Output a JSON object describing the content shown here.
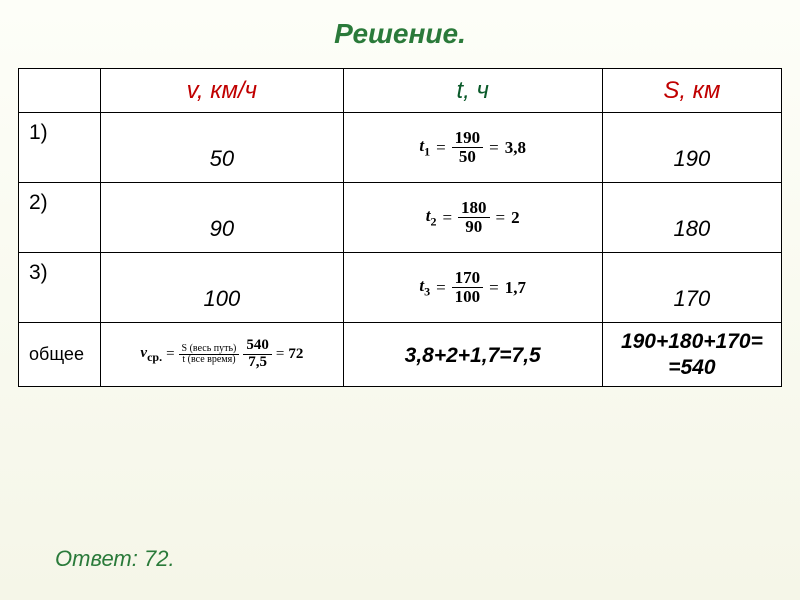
{
  "title": "Решение.",
  "table": {
    "headers": {
      "v": "v, км/ч",
      "t": "t, ч",
      "s": "S, км"
    },
    "rows": [
      {
        "label": "1)",
        "v": "50",
        "t_var": "t",
        "t_sub": "1",
        "t_num": "190",
        "t_den": "50",
        "t_result": "3,8",
        "s": "190"
      },
      {
        "label": "2)",
        "v": "90",
        "t_var": "t",
        "t_sub": "2",
        "t_num": "180",
        "t_den": "90",
        "t_result": "2",
        "s": "180"
      },
      {
        "label": "3)",
        "v": "100",
        "t_var": "t",
        "t_sub": "3",
        "t_num": "170",
        "t_den": "100",
        "t_result": "1,7",
        "s": "170"
      }
    ],
    "total": {
      "label": "общее",
      "v_var": "v",
      "v_sub": "ср.",
      "v_num_annot": "S (весь путь)",
      "v_den_annot": "t (все время)",
      "v_num": "540",
      "v_den": "7,5",
      "v_result": "72",
      "t_sum": "3,8+2+1,7=7,5",
      "s_sum_line1": "190+180+170=",
      "s_sum_line2": "=540"
    }
  },
  "answer": "Ответ: 72.",
  "colors": {
    "title": "#2a7a3a",
    "header_red": "#c00000",
    "header_green": "#0a5a2a",
    "border": "#000000",
    "bg_top": "#fdfef8",
    "bg_bottom": "#f5f6e8"
  }
}
